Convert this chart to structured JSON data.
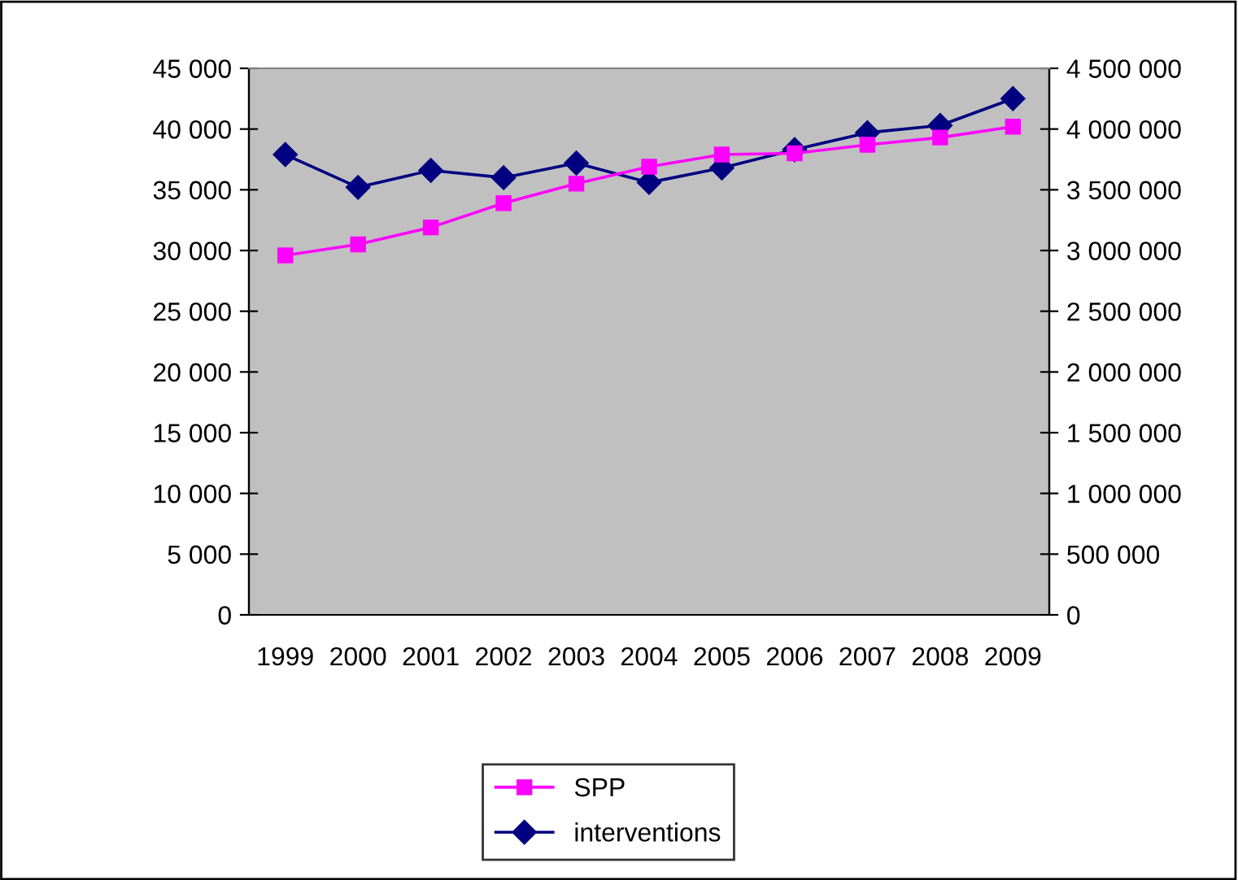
{
  "chart_data": {
    "type": "line",
    "categories": [
      "1999",
      "2000",
      "2001",
      "2002",
      "2003",
      "2004",
      "2005",
      "2006",
      "2007",
      "2008",
      "2009"
    ],
    "series": [
      {
        "name": "SPP",
        "color": "#ff00ff",
        "marker": "square",
        "values": [
          29600,
          30500,
          31900,
          33900,
          35500,
          36900,
          37900,
          38000,
          38700,
          39300,
          40200
        ]
      },
      {
        "name": "interventions",
        "color": "#000080",
        "marker": "diamond",
        "axis": "y2",
        "values": [
          3790000,
          3520000,
          3660000,
          3600000,
          3720000,
          3560000,
          3680000,
          3830000,
          3970000,
          4030000,
          4250000
        ]
      }
    ],
    "ylim": [
      0,
      45000
    ],
    "yticks": [
      0,
      {
        "value": 5000,
        "label": "5 000"
      },
      {
        "value": 10000,
        "label": "10 000"
      },
      {
        "value": 15000,
        "label": "15 000"
      },
      {
        "value": 20000,
        "label": "20 000"
      },
      {
        "value": 25000,
        "label": "25 000"
      },
      {
        "value": 30000,
        "label": "30 000"
      },
      {
        "value": 35000,
        "label": "35 000"
      },
      {
        "value": 40000,
        "label": "40 000"
      },
      {
        "value": 45000,
        "label": "45 000"
      }
    ],
    "y2lim": [
      0,
      4500000
    ],
    "y2ticks": [
      0,
      {
        "value": 500000,
        "label": "500 000"
      },
      {
        "value": 1000000,
        "label": "1 000 000"
      },
      {
        "value": 1500000,
        "label": "1 500 000"
      },
      {
        "value": 2000000,
        "label": "2 000 000"
      },
      {
        "value": 2500000,
        "label": "2 500 000"
      },
      {
        "value": 3000000,
        "label": "3 000 000"
      },
      {
        "value": 3500000,
        "label": "3 500 000"
      },
      {
        "value": 4000000,
        "label": "4 000 000"
      },
      {
        "value": 4500000,
        "label": "4 500 000"
      }
    ],
    "grid": false,
    "legend": "bottom"
  }
}
